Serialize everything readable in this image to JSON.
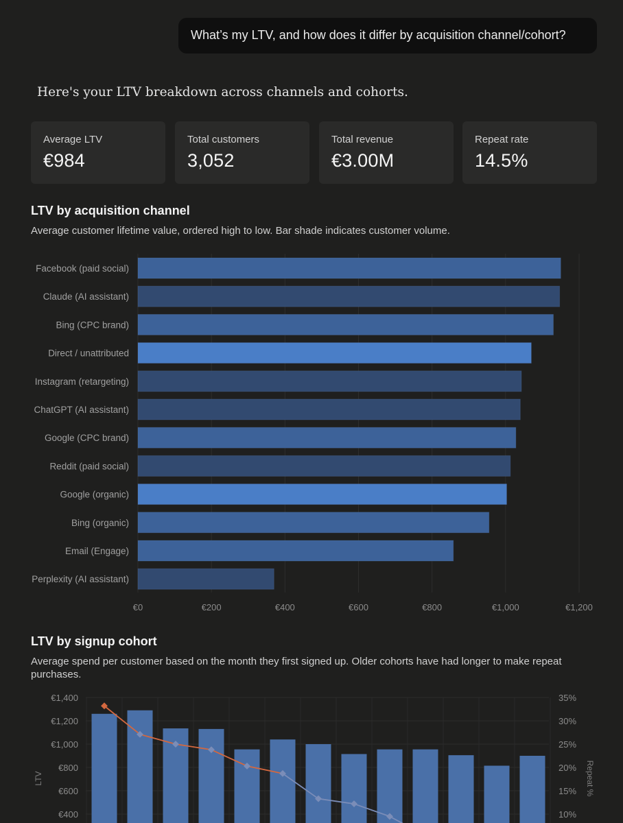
{
  "user_message": "What’s my LTV, and how does it differ by acquisition channel/cohort?",
  "intro": "Here's your LTV breakdown across channels and cohorts.",
  "stats": [
    {
      "label": "Average LTV",
      "value": "€984"
    },
    {
      "label": "Total customers",
      "value": "3,052"
    },
    {
      "label": "Total revenue",
      "value": "€3.00M"
    },
    {
      "label": "Repeat rate",
      "value": "14.5%"
    }
  ],
  "channel_section": {
    "title": "LTV by acquisition channel",
    "subtitle": "Average customer lifetime value, ordered high to low. Bar shade indicates customer volume."
  },
  "cohort_section": {
    "title": "LTV by signup cohort",
    "subtitle": "Average spend per customer based on the month they first signed up. Older cohorts have had longer to make repeat purchases."
  },
  "colors": {
    "background": "#1f1f1e",
    "bar_high_volume": "#4a7ec7",
    "bar_mid_volume": "#3d6299",
    "bar_low_volume": "#324a70",
    "cohort_bar": "#4a70a8",
    "repeat_line_early": "#d4683f",
    "repeat_line_late": "#7b8db8"
  },
  "chart_data": [
    {
      "type": "bar",
      "orientation": "horizontal",
      "title": "LTV by acquisition channel",
      "categories": [
        "Facebook (paid social)",
        "Claude (AI assistant)",
        "Bing (CPC brand)",
        "Direct / unattributed",
        "Instagram (retargeting)",
        "ChatGPT (AI assistant)",
        "Google (CPC brand)",
        "Reddit (paid social)",
        "Google (organic)",
        "Bing (organic)",
        "Email (Engage)",
        "Perplexity (AI assistant)"
      ],
      "values": [
        1150,
        1147,
        1130,
        1070,
        1043,
        1040,
        1028,
        1013,
        1003,
        955,
        858,
        370
      ],
      "volume_shade": [
        "mid",
        "low",
        "mid",
        "high",
        "low",
        "low",
        "mid",
        "low",
        "high",
        "mid",
        "mid",
        "low"
      ],
      "xlim": [
        0,
        1200
      ],
      "x_ticks": [
        "€0",
        "€200",
        "€400",
        "€600",
        "€800",
        "€1,000",
        "€1,200"
      ],
      "grid": true
    },
    {
      "type": "bar",
      "title": "LTV by signup cohort",
      "ylabel": "LTV",
      "y2label": "Repeat %",
      "ylim": [
        0,
        1400
      ],
      "y_ticks": [
        "€1,400",
        "€1,200",
        "€1,000",
        "€800",
        "€600",
        "€400"
      ],
      "y2lim": [
        0,
        35
      ],
      "y2_ticks": [
        "35%",
        "30%",
        "25%",
        "20%",
        "15%",
        "10%"
      ],
      "values": [
        1260,
        1290,
        1135,
        1130,
        955,
        1040,
        1000,
        915,
        955,
        955,
        905,
        815,
        900
      ],
      "series": [
        {
          "name": "Repeat %",
          "type": "line",
          "values": [
            33.2,
            27.1,
            25.0,
            23.8,
            20.3,
            18.7,
            13.3,
            12.2,
            9.5,
            null,
            null,
            null,
            null
          ]
        }
      ],
      "grid": true
    }
  ]
}
